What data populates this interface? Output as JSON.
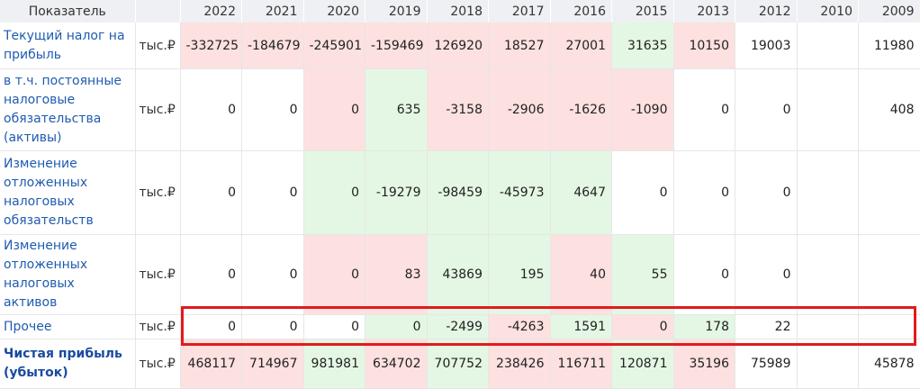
{
  "header": {
    "indicator_label": "Показатель",
    "years": [
      "2022",
      "2021",
      "2020",
      "2019",
      "2018",
      "2017",
      "2016",
      "2015",
      "2013",
      "2012",
      "2010",
      "2009"
    ]
  },
  "rows": [
    {
      "name": "Текущий налог на прибыль",
      "unit": "тыс.₽",
      "values": [
        "-332725",
        "-184679",
        "-245901",
        "-159469",
        "126920",
        "18527",
        "27001",
        "31635",
        "10150",
        "19003",
        "",
        "11980"
      ],
      "tones": [
        "neg",
        "neg",
        "neg",
        "neg",
        "neg",
        "neg",
        "neg",
        "pos",
        "neg",
        "none",
        "none",
        "none"
      ]
    },
    {
      "name": "в т.ч. постоянные налоговые обязательства (активы)",
      "unit": "тыс.₽",
      "values": [
        "0",
        "0",
        "0",
        "635",
        "-3158",
        "-2906",
        "-1626",
        "-1090",
        "0",
        "0",
        "",
        "408"
      ],
      "tones": [
        "none",
        "none",
        "neg",
        "pos",
        "neg",
        "neg",
        "neg",
        "neg",
        "none",
        "none",
        "none",
        "none"
      ]
    },
    {
      "name": "Изменение отложенных налоговых обязательств",
      "unit": "тыс.₽",
      "values": [
        "0",
        "0",
        "0",
        "-19279",
        "-98459",
        "-45973",
        "4647",
        "0",
        "0",
        "0",
        "",
        ""
      ],
      "tones": [
        "none",
        "none",
        "pos",
        "pos",
        "pos",
        "pos",
        "pos",
        "none",
        "none",
        "none",
        "none",
        "none"
      ]
    },
    {
      "name": "Изменение отложенных налоговых активов",
      "unit": "тыс.₽",
      "values": [
        "0",
        "0",
        "0",
        "83",
        "43869",
        "195",
        "40",
        "55",
        "0",
        "0",
        "",
        ""
      ],
      "tones": [
        "none",
        "none",
        "neg",
        "neg",
        "pos",
        "pos",
        "neg",
        "pos",
        "none",
        "none",
        "none",
        "none"
      ]
    },
    {
      "name": "Прочее",
      "unit": "тыс.₽",
      "values": [
        "0",
        "0",
        "0",
        "0",
        "-2499",
        "-4263",
        "1591",
        "0",
        "178",
        "22",
        "",
        ""
      ],
      "tones": [
        "none",
        "none",
        "none",
        "pos",
        "pos",
        "neg",
        "pos",
        "neg",
        "pos",
        "none",
        "none",
        "none"
      ]
    },
    {
      "name": "Чистая прибыль (убыток)",
      "unit": "тыс.₽",
      "bold": true,
      "values": [
        "468117",
        "714967",
        "981981",
        "634702",
        "707752",
        "238426",
        "116711",
        "120871",
        "35196",
        "75989",
        "",
        "45878"
      ],
      "tones": [
        "neg",
        "neg",
        "pos",
        "neg",
        "pos",
        "neg",
        "neg",
        "pos",
        "neg",
        "none",
        "none",
        "none"
      ]
    }
  ],
  "highlight": {
    "color": "#e21b1b",
    "target_row": "Чистая прибыль (убыток)"
  },
  "colors": {
    "negative_bg": "#fde0e0",
    "positive_bg": "#e4f7e4",
    "header_bg": "#eef0f3",
    "name_text": "#1f5bb0"
  }
}
